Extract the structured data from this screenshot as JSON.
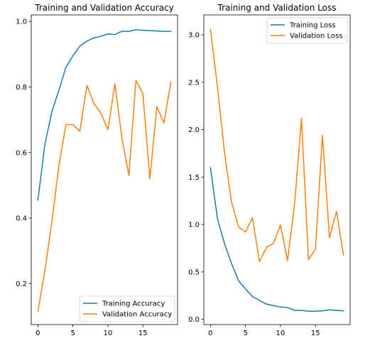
{
  "chart_data": [
    {
      "type": "line",
      "title": "Training and Validation Accuracy",
      "xlabel": "",
      "ylabel": "",
      "xlim": [
        -0.95,
        19.95
      ],
      "ylim": [
        0.075,
        1.02
      ],
      "xticks": [
        0,
        5,
        10,
        15
      ],
      "yticks": [
        0.2,
        0.4,
        0.6,
        0.8,
        1.0
      ],
      "xtick_labels": [
        "0",
        "5",
        "10",
        "15"
      ],
      "ytick_labels": [
        "0.2",
        "0.4",
        "0.6",
        "0.8",
        "1.0"
      ],
      "grid": false,
      "legend_position": "lower-right",
      "x": [
        0,
        1,
        2,
        3,
        4,
        5,
        6,
        7,
        8,
        9,
        10,
        11,
        12,
        13,
        14,
        15,
        16,
        17,
        18,
        19
      ],
      "series": [
        {
          "name": "Training Accuracy",
          "color": "#1f77b4",
          "values": [
            0.455,
            0.625,
            0.725,
            0.79,
            0.86,
            0.895,
            0.925,
            0.94,
            0.95,
            0.955,
            0.962,
            0.96,
            0.97,
            0.97,
            0.975,
            0.973,
            0.972,
            0.971,
            0.97,
            0.97
          ]
        },
        {
          "name": "Validation Accuracy",
          "color": "#ff7f0e",
          "values": [
            0.115,
            0.24,
            0.39,
            0.56,
            0.685,
            0.685,
            0.665,
            0.805,
            0.75,
            0.72,
            0.67,
            0.81,
            0.645,
            0.53,
            0.82,
            0.78,
            0.52,
            0.74,
            0.69,
            0.815
          ]
        }
      ]
    },
    {
      "type": "line",
      "title": "Training and Validation Loss",
      "xlabel": "",
      "ylabel": "",
      "xlim": [
        -0.95,
        19.95
      ],
      "ylim": [
        -0.055,
        3.21
      ],
      "xticks": [
        0,
        5,
        10,
        15
      ],
      "yticks": [
        0.0,
        0.5,
        1.0,
        1.5,
        2.0,
        2.5,
        3.0
      ],
      "xtick_labels": [
        "0",
        "5",
        "10",
        "15"
      ],
      "ytick_labels": [
        "0.0",
        "0.5",
        "1.0",
        "1.5",
        "2.0",
        "2.5",
        "3.0"
      ],
      "grid": false,
      "legend_position": "upper-right",
      "x": [
        0,
        1,
        2,
        3,
        4,
        5,
        6,
        7,
        8,
        9,
        10,
        11,
        12,
        13,
        14,
        15,
        16,
        17,
        18,
        19
      ],
      "series": [
        {
          "name": "Training Loss",
          "color": "#1f77b4",
          "values": [
            1.6,
            1.06,
            0.8,
            0.59,
            0.41,
            0.32,
            0.24,
            0.2,
            0.16,
            0.145,
            0.13,
            0.125,
            0.095,
            0.095,
            0.085,
            0.085,
            0.09,
            0.1,
            0.095,
            0.09
          ]
        },
        {
          "name": "Validation Loss",
          "color": "#ff7f0e",
          "values": [
            3.06,
            2.45,
            1.76,
            1.24,
            0.975,
            0.92,
            1.07,
            0.61,
            0.76,
            0.8,
            0.995,
            0.62,
            1.2,
            2.12,
            0.63,
            0.74,
            1.94,
            0.86,
            1.14,
            0.68
          ]
        }
      ]
    }
  ]
}
